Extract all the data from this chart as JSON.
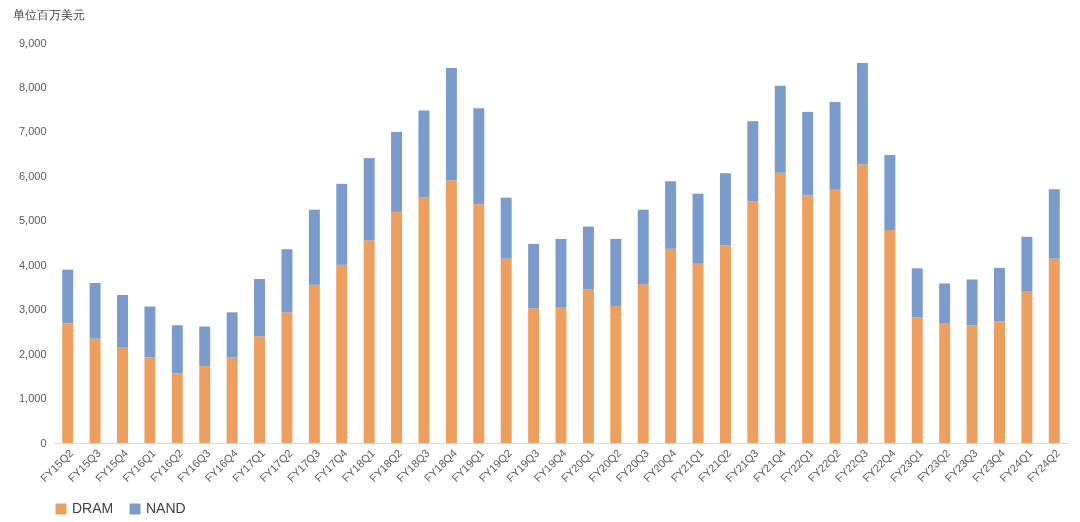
{
  "chart_data": {
    "type": "bar",
    "stacked": true,
    "ylabel": "单位百万美元",
    "categories": [
      "FY15Q2",
      "FY15Q3",
      "FY15Q4",
      "FY16Q1",
      "FY16Q2",
      "FY16Q3",
      "FY16Q4",
      "FY17Q1",
      "FY17Q2",
      "FY17Q3",
      "FY17Q4",
      "FY18Q1",
      "FY18Q2",
      "FY18Q3",
      "FY18Q4",
      "FY19Q1",
      "FY19Q2",
      "FY19Q3",
      "FY19Q4",
      "FY20Q1",
      "FY20Q2",
      "FY20Q3",
      "FY20Q4",
      "FY21Q1",
      "FY21Q2",
      "FY21Q3",
      "FY21Q4",
      "FY22Q1",
      "FY22Q2",
      "FY22Q3",
      "FY22Q4",
      "FY23Q1",
      "FY23Q2",
      "FY23Q3",
      "FY23Q4",
      "FY24Q1",
      "FY24Q2"
    ],
    "series": [
      {
        "name": "DRAM",
        "color": "#ed9f5f",
        "values": [
          2690,
          2350,
          2160,
          1930,
          1570,
          1730,
          1930,
          2400,
          2940,
          3560,
          4010,
          4560,
          5200,
          5530,
          5910,
          5370,
          4150,
          3030,
          3060,
          3450,
          3080,
          3570,
          4370,
          4050,
          4440,
          5440,
          6080,
          5570,
          5700,
          6270,
          4790,
          2820,
          2700,
          2650,
          2740,
          3420,
          4150
        ]
      },
      {
        "name": "NAND",
        "color": "#7b9bcc",
        "values": [
          1210,
          1250,
          1170,
          1140,
          1080,
          890,
          1010,
          1290,
          1420,
          1690,
          1820,
          1850,
          1800,
          1950,
          2530,
          2160,
          1370,
          1450,
          1530,
          1420,
          1510,
          1680,
          1520,
          1560,
          1630,
          1800,
          1960,
          1880,
          1970,
          2280,
          1690,
          1110,
          890,
          1030,
          1200,
          1220,
          1560
        ]
      }
    ],
    "ylim": [
      0,
      9000
    ],
    "yticks": [
      0,
      {
        "value": 1000,
        "label": "1,000"
      },
      {
        "value": 2000,
        "label": "2,000"
      },
      {
        "value": 3000,
        "label": "3,000"
      },
      {
        "value": 4000,
        "label": "4,000"
      },
      {
        "value": 5000,
        "label": "5,000"
      },
      {
        "value": 6000,
        "label": "6,000"
      },
      {
        "value": 7000,
        "label": "7,000"
      },
      {
        "value": 8000,
        "label": "8,000"
      },
      {
        "value": 9000,
        "label": "9,000"
      }
    ],
    "grid": false,
    "legend": "bottom"
  }
}
